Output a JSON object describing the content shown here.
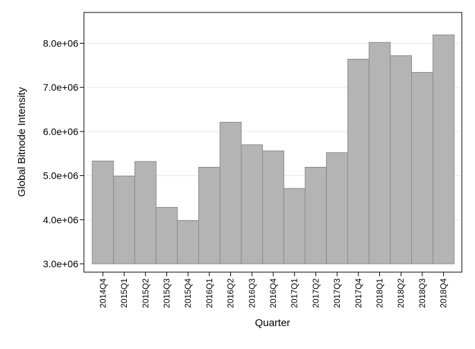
{
  "chart_data": {
    "type": "bar",
    "title": "",
    "xlabel": "Quarter",
    "ylabel": "Global Bitnode Intensity",
    "categories": [
      "2014Q4",
      "2015Q1",
      "2015Q2",
      "2015Q3",
      "2015Q4",
      "2016Q1",
      "2016Q2",
      "2016Q3",
      "2016Q4",
      "2017Q1",
      "2017Q2",
      "2017Q3",
      "2017Q4",
      "2018Q1",
      "2018Q2",
      "2018Q3",
      "2018Q4"
    ],
    "values": [
      5330000,
      4990000,
      5320000,
      4280000,
      3980000,
      5190000,
      6210000,
      5700000,
      5560000,
      4710000,
      5190000,
      5520000,
      7640000,
      8020000,
      7720000,
      7340000,
      8190000
    ],
    "ylim": [
      3000000,
      8400000
    ],
    "yticks": [
      3000000,
      4000000,
      5000000,
      6000000,
      7000000,
      8000000
    ],
    "ytick_labels": [
      "3.0e+06",
      "4.0e+06",
      "5.0e+06",
      "6.0e+06",
      "7.0e+06",
      "8.0e+06"
    ],
    "grid": true,
    "bar_color": "#b4b4b4",
    "bar_edge_color": "#8c8c8c",
    "grid_color": "#eaeaea",
    "frame_color": "#000000"
  }
}
